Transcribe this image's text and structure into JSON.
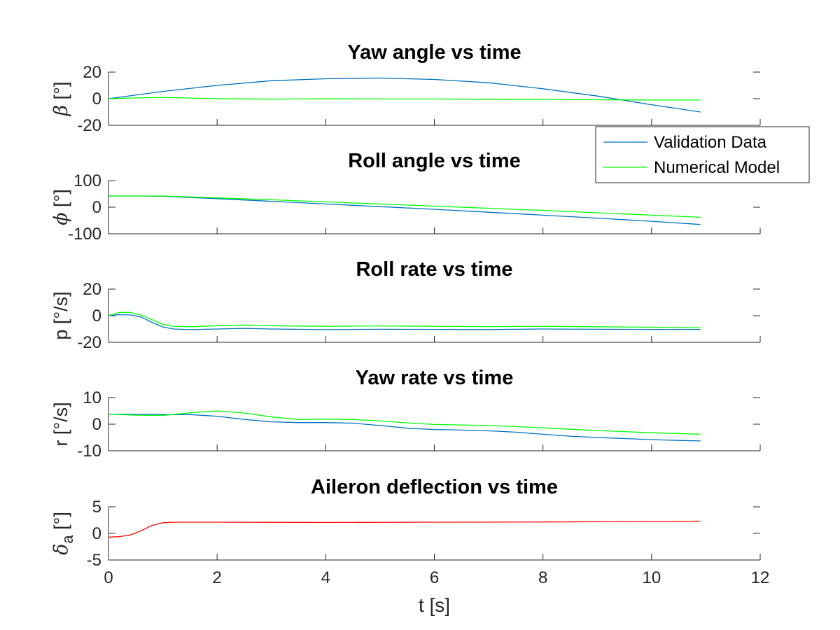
{
  "chart_data": [
    {
      "type": "line",
      "title": "Yaw angle vs time",
      "ylabel": {
        "symbol": "β",
        "subscript": "",
        "unit": " [°]"
      },
      "ylim": [
        -20,
        20
      ],
      "yticks": [
        "20",
        "0",
        "-20"
      ],
      "xlim": [
        0,
        12
      ],
      "series": [
        {
          "name": "Validation Data",
          "color": "#0072BD",
          "x": [
            0,
            1,
            2,
            3,
            4,
            5,
            6,
            7,
            8,
            9,
            10,
            10.9
          ],
          "y": [
            0,
            5.5,
            10,
            13.5,
            15,
            15.5,
            14.5,
            12,
            7.5,
            2,
            -4.5,
            -10
          ]
        },
        {
          "name": "Numerical Model",
          "color": "#00FF00",
          "x": [
            0,
            0.5,
            1,
            1.5,
            2,
            3,
            4,
            5,
            6,
            7,
            8,
            9,
            10,
            10.9
          ],
          "y": [
            0,
            0.6,
            1,
            0.5,
            0,
            -0.3,
            0,
            -0.2,
            -0.2,
            -0.4,
            -0.6,
            -0.8,
            -1,
            -1
          ]
        }
      ]
    },
    {
      "type": "line",
      "title": "Roll angle vs time",
      "ylabel": {
        "symbol": "ϕ",
        "subscript": "",
        "unit": " [°]"
      },
      "ylim": [
        -100,
        100
      ],
      "yticks": [
        "100",
        "0",
        "-100"
      ],
      "xlim": [
        0,
        12
      ],
      "series": [
        {
          "name": "Validation Data",
          "color": "#0072BD",
          "x": [
            0,
            0.5,
            1,
            2,
            3,
            4,
            5,
            6,
            7,
            8,
            9,
            10,
            10.9
          ],
          "y": [
            42,
            42,
            41,
            32,
            22,
            12,
            2,
            -8,
            -19,
            -30,
            -41,
            -53,
            -65
          ]
        },
        {
          "name": "Numerical Model",
          "color": "#00FF00",
          "x": [
            0,
            0.5,
            1,
            2,
            3,
            4,
            5,
            6,
            7,
            8,
            9,
            10,
            10.9
          ],
          "y": [
            42,
            42,
            42,
            35,
            28,
            20,
            12,
            4,
            -4,
            -12,
            -21,
            -30,
            -38
          ]
        }
      ]
    },
    {
      "type": "line",
      "title": "Roll rate vs time",
      "ylabel": {
        "symbol": "",
        "subscript": "",
        "unit": "p [°/s]"
      },
      "ylim": [
        -20,
        20
      ],
      "yticks": [
        "20",
        "0",
        "-20"
      ],
      "xlim": [
        0,
        12
      ],
      "series": [
        {
          "name": "Validation Data",
          "color": "#0072BD",
          "x": [
            0,
            0.2,
            0.4,
            0.6,
            0.8,
            1,
            1.2,
            1.5,
            2,
            2.5,
            3,
            4,
            5,
            6,
            7,
            8,
            9,
            10,
            10.9
          ],
          "y": [
            0,
            0.8,
            0.6,
            -1,
            -5,
            -8.5,
            -10,
            -10.5,
            -10,
            -9.5,
            -10,
            -10.5,
            -10.2,
            -10.3,
            -10.4,
            -10,
            -10.2,
            -10.3,
            -10.3
          ]
        },
        {
          "name": "Numerical Model",
          "color": "#00FF00",
          "x": [
            0,
            0.2,
            0.4,
            0.6,
            0.8,
            1,
            1.2,
            1.5,
            2,
            2.5,
            3,
            4,
            5,
            6,
            7,
            8,
            9,
            10,
            10.9
          ],
          "y": [
            0,
            2.5,
            2.5,
            0.5,
            -3,
            -6.5,
            -8,
            -8.3,
            -7.5,
            -7,
            -7.5,
            -8,
            -7.7,
            -8,
            -8.2,
            -8,
            -8.3,
            -8.7,
            -9
          ]
        }
      ]
    },
    {
      "type": "line",
      "title": "Yaw rate vs time",
      "ylabel": {
        "symbol": "",
        "subscript": "",
        "unit": "r [°/s]"
      },
      "ylim": [
        -10,
        10
      ],
      "yticks": [
        "10",
        "0",
        "-10"
      ],
      "xlim": [
        0,
        12
      ],
      "series": [
        {
          "name": "Validation Data",
          "color": "#0072BD",
          "x": [
            0,
            0.5,
            1,
            1.5,
            2,
            2.5,
            3,
            3.5,
            4,
            4.5,
            5,
            5.5,
            6,
            6.5,
            7,
            7.5,
            8,
            8.5,
            9,
            9.5,
            10,
            10.5,
            10.9
          ],
          "y": [
            3.8,
            3.7,
            3.6,
            3.6,
            3,
            1.8,
            0.9,
            0.6,
            0.6,
            0.4,
            -0.5,
            -1.5,
            -2,
            -2.2,
            -2.5,
            -3,
            -3.8,
            -4.5,
            -5,
            -5.4,
            -5.8,
            -6.1,
            -6.3
          ]
        },
        {
          "name": "Numerical Model",
          "color": "#00FF00",
          "x": [
            0,
            0.5,
            1,
            1.5,
            2,
            2.5,
            3,
            3.5,
            4,
            4.5,
            5,
            5.5,
            6,
            6.5,
            7,
            7.5,
            8,
            8.5,
            9,
            9.5,
            10,
            10.5,
            10.9
          ],
          "y": [
            3.8,
            3.4,
            3.3,
            4.3,
            5,
            4.2,
            2.7,
            1.8,
            1.9,
            1.8,
            1.2,
            0.5,
            -0.1,
            -0.3,
            -0.5,
            -0.9,
            -1.4,
            -1.9,
            -2.4,
            -2.8,
            -3.2,
            -3.5,
            -3.8
          ]
        }
      ]
    },
    {
      "type": "line",
      "title": "Aileron deflection vs time",
      "ylabel": {
        "symbol": "δ",
        "subscript": "a",
        "unit": " [°]"
      },
      "ylim": [
        -5,
        5
      ],
      "yticks": [
        "5",
        "0",
        "-5"
      ],
      "xlim": [
        0,
        12
      ],
      "xticks": [
        "0",
        "2",
        "4",
        "6",
        "8",
        "10",
        "12"
      ],
      "xlabel": "t [s]",
      "series": [
        {
          "name": "",
          "color": "#FF0000",
          "x": [
            0,
            0.2,
            0.4,
            0.6,
            0.8,
            1,
            1.2,
            2,
            4,
            6,
            8,
            10,
            10.9
          ],
          "y": [
            -0.7,
            -0.6,
            -0.3,
            0.5,
            1.5,
            2,
            2.1,
            2.1,
            2.05,
            2.1,
            2.15,
            2.25,
            2.3
          ]
        }
      ]
    }
  ],
  "legend": {
    "entries": [
      {
        "label": "Validation Data",
        "color": "#0072BD"
      },
      {
        "label": "Numerical Model",
        "color": "#00FF00"
      }
    ]
  }
}
